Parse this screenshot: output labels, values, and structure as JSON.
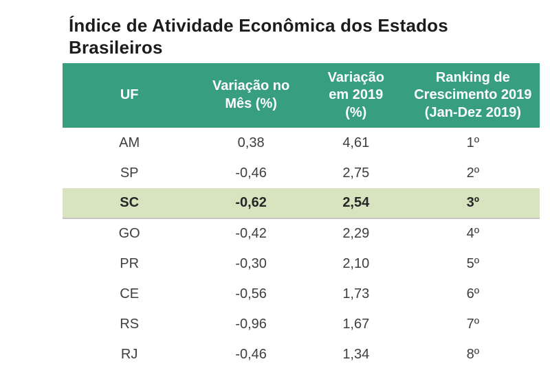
{
  "chart_data": {
    "type": "table",
    "title": "Índice de Atividade Econômica dos Estados Brasileiros",
    "columns": [
      "UF",
      "Variação no Mês (%)",
      "Variação em 2019 (%)",
      "Ranking de Crescimento 2019 (Jan-Dez 2019)"
    ],
    "rows": [
      [
        "AM",
        "0,38",
        "4,61",
        "1º"
      ],
      [
        "SP",
        "-0,46",
        "2,75",
        "2º"
      ],
      [
        "SC",
        "-0,62",
        "2,54",
        "3º"
      ],
      [
        "GO",
        "-0,42",
        "2,29",
        "4º"
      ],
      [
        "PR",
        "-0,30",
        "2,10",
        "5º"
      ],
      [
        "CE",
        "-0,56",
        "1,73",
        "6º"
      ],
      [
        "RS",
        "-0,96",
        "1,67",
        "7º"
      ],
      [
        "RJ",
        "-0,46",
        "1,34",
        "8º"
      ]
    ],
    "rows_numeric": {
      "var_mes": [
        0.38,
        -0.46,
        -0.62,
        -0.42,
        -0.3,
        -0.56,
        -0.96,
        -0.46
      ],
      "var_2019": [
        4.61,
        2.75,
        2.54,
        2.29,
        2.1,
        1.73,
        1.67,
        1.34
      ],
      "ranking": [
        1,
        2,
        3,
        4,
        5,
        6,
        7,
        8
      ]
    },
    "highlighted_row_uf": "SC",
    "highlighted_row_index": 2,
    "layout": {
      "grid": "off",
      "header_position": "top",
      "alignment": "center"
    }
  },
  "colors": {
    "header_bg": "#379E80",
    "header_text": "#FFFFFF",
    "highlight_bg": "#D8E4C0",
    "highlight_text": "#262626",
    "body_text": "#3E3E3E",
    "title_text": "#1C1C1C",
    "highlight_border": "#C4C4C4"
  }
}
